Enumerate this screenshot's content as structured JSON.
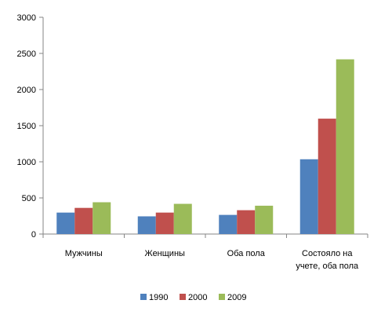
{
  "chart_data": {
    "type": "bar",
    "categories": [
      "Мужчины",
      "Женщины",
      "Оба пола",
      "Состояло на учете, оба пола"
    ],
    "category_label_lines": [
      [
        "Мужчины"
      ],
      [
        "Женщины"
      ],
      [
        "Оба пола"
      ],
      [
        "Состояло на",
        "учете, оба пола"
      ]
    ],
    "series": [
      {
        "name": "1990",
        "color": "#4f81bd",
        "values": [
          297,
          245,
          265,
          1035
        ]
      },
      {
        "name": "2000",
        "color": "#c0504d",
        "values": [
          362,
          297,
          330,
          1597
        ]
      },
      {
        "name": "2009",
        "color": "#9bbb59",
        "values": [
          440,
          418,
          392,
          2418
        ]
      }
    ],
    "ylim": [
      0,
      3000
    ],
    "yticks": [
      "0",
      "500",
      "1000",
      "1500",
      "2000",
      "2500",
      "3000"
    ],
    "ytick_values": [
      0,
      500,
      1000,
      1500,
      2000,
      2500,
      3000
    ],
    "grid": false,
    "legend_position": "bottom"
  }
}
